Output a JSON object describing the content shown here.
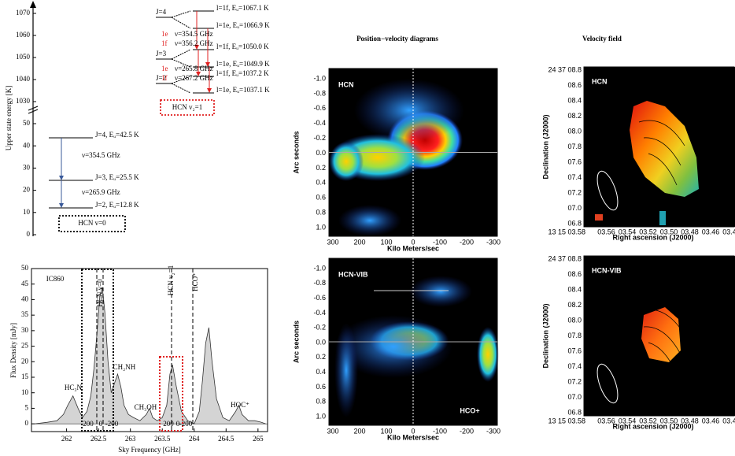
{
  "energy_diagram": {
    "y_axis_label": "Upper state energy [K]",
    "yticks_upper": [
      1030,
      1040,
      1050,
      1060,
      1070
    ],
    "yticks_lower": [
      0,
      10,
      20,
      30,
      40,
      50
    ],
    "v0": {
      "levels": [
        "J=4, Eᵤ=42.5 K",
        "J=3, Eᵤ=25.5 K",
        "J=2, Eᵤ=12.8 K"
      ],
      "transitions": [
        "ν=354.5 GHz",
        "ν=265.9 GHz"
      ],
      "label": "HCN v=0"
    },
    "v2": {
      "levels": [
        "J=4",
        "J=3",
        "J=2"
      ],
      "sublevels": [
        "l=1f, Eᵤ=1067.1 K",
        "l=1e, Eᵤ=1066.9 K",
        "l=1f, Eᵤ=1050.0 K",
        "l=1e, Eᵤ=1049.9 K",
        "l=1f, Eᵤ=1037.2 K",
        "l=1e, Eᵤ=1037.1 K"
      ],
      "transitions": [
        {
          "parity": "1e",
          "freq": "ν=354.5 GHz"
        },
        {
          "parity": "1f",
          "freq": "ν=356.2 GHz"
        },
        {
          "parity": "1e",
          "freq": "ν=265.8 GHz"
        },
        {
          "parity": "1f",
          "freq": "ν=267.2 GHz"
        }
      ],
      "label": "HCN v₂=1"
    }
  },
  "chart_data": {
    "type": "area",
    "color": "#d4d4d4",
    "x": [
      261.5,
      261.7,
      261.85,
      261.95,
      262.02,
      262.1,
      262.18,
      262.25,
      262.32,
      262.38,
      262.43,
      262.48,
      262.52,
      262.56,
      262.6,
      262.65,
      262.7,
      262.75,
      262.8,
      262.85,
      262.9,
      262.97,
      263.05,
      263.15,
      263.25,
      263.3,
      263.35,
      263.42,
      263.5,
      263.57,
      263.62,
      263.66,
      263.72,
      263.8,
      263.9,
      264.0,
      264.08,
      264.13,
      264.18,
      264.23,
      264.28,
      264.35,
      264.45,
      264.55,
      264.65,
      264.7,
      264.75,
      264.85,
      264.95,
      265.05,
      265.12
    ],
    "values": [
      0,
      0.5,
      1,
      3,
      6,
      9,
      5,
      2,
      4,
      9,
      18,
      30,
      41,
      44,
      36,
      20,
      10,
      13,
      16,
      12,
      6,
      3,
      2,
      1,
      3,
      5,
      2,
      1,
      2,
      6,
      16,
      19,
      12,
      4,
      1,
      0,
      4,
      14,
      26,
      31,
      20,
      8,
      2,
      1,
      4,
      6,
      3,
      1,
      1,
      0.5,
      0
    ],
    "xlim": [
      261.45,
      265.15
    ],
    "ylim": [
      -2.5,
      50
    ],
    "xticks": [
      262,
      262.5,
      263,
      263.5,
      264,
      264.5,
      265
    ],
    "yticks": [
      0,
      5,
      10,
      15,
      20,
      25,
      30,
      35,
      40,
      45,
      50
    ],
    "xlabel": "Sky Frequency [GHz]",
    "ylabel": "Flux Density [mJy]",
    "annotations": [
      "IC860",
      "HC₃N",
      "HCN v=0",
      "CH₂NH",
      "CH₃OH",
      "HCN v₂=1",
      "HCO⁺",
      "HOC⁺",
      "200",
      "0",
      "-200",
      "200",
      "0",
      "-200"
    ]
  },
  "pv_diagrams": {
    "title": "Position−velocity diagrams",
    "panels": [
      {
        "label": "HCN"
      },
      {
        "label": "HCN-VIB",
        "annotation": "HCO+"
      }
    ],
    "yticks": [
      "-1.0",
      "-0.8",
      "-0.6",
      "-0.4",
      "-0.2",
      "0.0",
      "0.2",
      "0.4",
      "0.6",
      "0.8",
      "1.0"
    ],
    "xticks": [
      "300",
      "200",
      "100",
      "0",
      "-100",
      "-200",
      "-300"
    ],
    "xlabel": "Kilo Meters/sec",
    "ylabel": "Arc seconds"
  },
  "velocity_field": {
    "title": "Velocity field",
    "panels": [
      {
        "label": "HCN"
      },
      {
        "label": "HCN-VIB"
      }
    ],
    "yticks": [
      "24 37 08.8",
      "08.6",
      "08.4",
      "08.2",
      "08.0",
      "07.8",
      "07.6",
      "07.4",
      "07.2",
      "07.0",
      "06.8"
    ],
    "xticks": [
      "13 15 03.58",
      "03.56",
      "03.54",
      "03.52",
      "03.50",
      "03.48",
      "03.46",
      "03.44"
    ],
    "xlabel": "Right ascension (J2000)",
    "ylabel": "Declination (J2000)"
  }
}
